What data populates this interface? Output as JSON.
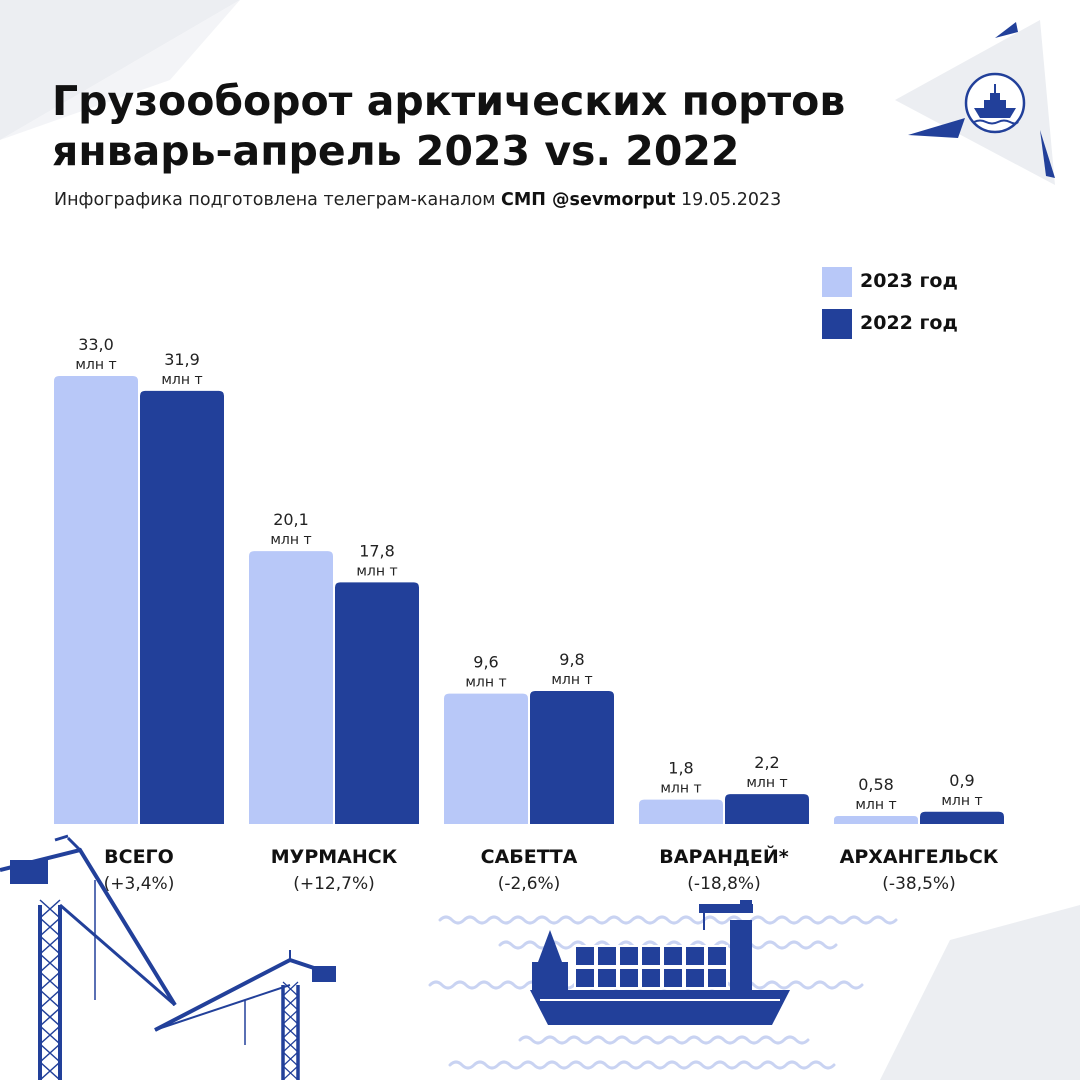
{
  "header": {
    "title_line1": "Грузооборот арктических портов",
    "title_line2": "январь-апрель 2023 vs. 2022",
    "subtitle_pre": "Инфографика подготовлена телеграм-каналом ",
    "subtitle_channel": "СМП @sevmorput",
    "subtitle_date": " 19.05.2023"
  },
  "colors": {
    "y2023": "#b8c8f8",
    "y2022": "#22409a",
    "decor": "#22409a",
    "triangle": "#e9eaee"
  },
  "icons": [
    "icebreaker-logo-icon",
    "crane-icon",
    "container-ship-icon",
    "wave-icon"
  ],
  "chart_data": {
    "type": "bar",
    "categories": [
      "ВСЕГО",
      "МУРМАНСК",
      "САБЕТТА",
      "ВАРАНДЕЙ*",
      "АРХАНГЕЛЬСК"
    ],
    "changes": [
      "(+3,4%)",
      "(+12,7%)",
      "(-2,6%)",
      "(-18,8%)",
      "(-38,5%)"
    ],
    "unit": "млн т",
    "legend_position": "top-right",
    "grid": false,
    "ylim": [
      0,
      33
    ],
    "series": [
      {
        "name": "2023 год",
        "color": "#b8c8f8",
        "values": [
          33.0,
          20.1,
          9.6,
          1.8,
          0.58
        ],
        "labels": [
          "33,0",
          "20,1",
          "9,6",
          "1,8",
          "0,58"
        ]
      },
      {
        "name": "2022 год",
        "color": "#22409a",
        "values": [
          31.9,
          17.8,
          9.8,
          2.2,
          0.9
        ],
        "labels": [
          "31,9",
          "17,8",
          "9,8",
          "2,2",
          "0,9"
        ]
      }
    ]
  }
}
